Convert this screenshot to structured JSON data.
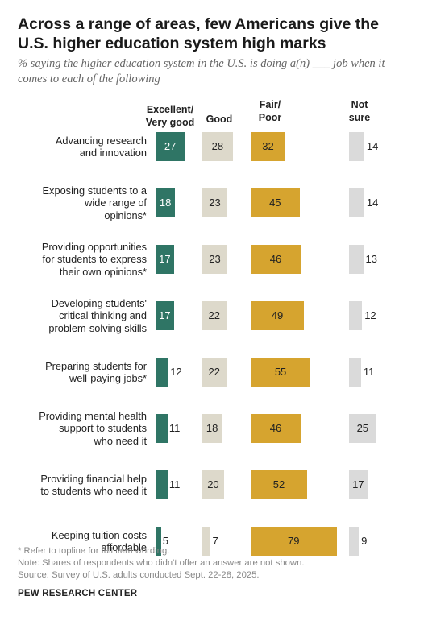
{
  "title": "Across a range of areas, few Americans give the U.S. higher education system high marks",
  "subtitle": "% saying the higher education system in the U.S. is doing a(n) ___ job when it comes to each of the following",
  "columns": {
    "excellent_line1": "Excellent/",
    "excellent_line2": "Very good",
    "good": "Good",
    "fair_line1": "Fair/",
    "fair_line2": "Poor",
    "notsure_line1": "Not",
    "notsure_line2": "sure"
  },
  "colors": {
    "excellent": "#2f7565",
    "good": "#ddd9cb",
    "fair": "#d6a42f",
    "not_sure": "#dadada"
  },
  "chart_data": {
    "type": "bar",
    "categories": [
      [
        "Advancing research",
        "and innovation"
      ],
      [
        "Exposing students to a",
        "wide range of",
        "opinions*"
      ],
      [
        "Providing opportunities",
        "for students to express",
        "their own opinions*"
      ],
      [
        "Developing students'",
        "critical thinking and",
        "problem-solving skills"
      ],
      [
        "Preparing students for",
        "well-paying jobs*"
      ],
      [
        "Providing mental health",
        "support to students",
        "who need it"
      ],
      [
        "Providing financial help",
        "to students who need it"
      ],
      [
        "Keeping tuition costs",
        "affordable"
      ]
    ],
    "series": [
      {
        "name": "Excellent/Very good",
        "values": [
          27,
          18,
          17,
          17,
          12,
          11,
          11,
          5
        ]
      },
      {
        "name": "Good",
        "values": [
          28,
          23,
          23,
          22,
          22,
          18,
          20,
          7
        ]
      },
      {
        "name": "Fair/Poor",
        "values": [
          32,
          45,
          46,
          49,
          55,
          46,
          52,
          79
        ]
      },
      {
        "name": "Not sure",
        "values": [
          14,
          14,
          13,
          12,
          11,
          25,
          17,
          9
        ]
      }
    ]
  },
  "footnotes": {
    "note1": "* Refer to topline for full item wording.",
    "note2": "Note: Shares of respondents who didn't offer an answer are not shown.",
    "source": "Source: Survey of U.S. adults conducted Sept. 22-28, 2025."
  },
  "brand": "PEW RESEARCH CENTER"
}
